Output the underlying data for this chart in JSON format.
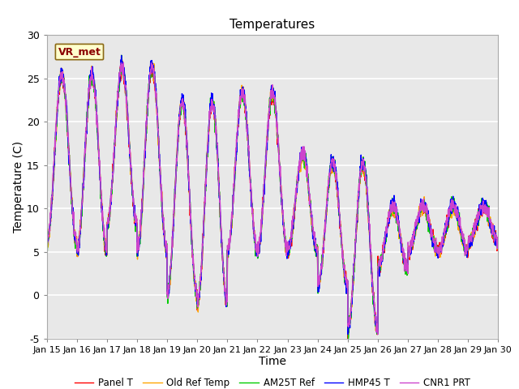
{
  "title": "Temperatures",
  "xlabel": "Time",
  "ylabel": "Temperature (C)",
  "xlim": [
    0,
    15
  ],
  "ylim": [
    -5,
    30
  ],
  "xtick_labels": [
    "Jan 15",
    "Jan 16",
    "Jan 17",
    "Jan 18",
    "Jan 19",
    "Jan 20",
    "Jan 21",
    "Jan 22",
    "Jan 23",
    "Jan 24",
    "Jan 25",
    "Jan 26",
    "Jan 27",
    "Jan 28",
    "Jan 29",
    "Jan 30"
  ],
  "ytick_labels": [
    "-5",
    "0",
    "5",
    "10",
    "15",
    "20",
    "25",
    "30"
  ],
  "ytick_values": [
    -5,
    0,
    5,
    10,
    15,
    20,
    25,
    30
  ],
  "annotation_text": "VR_met",
  "annotation_box_color": "#ffffcc",
  "annotation_text_color": "#8b0000",
  "legend": [
    "Panel T",
    "Old Ref Temp",
    "AM25T Ref",
    "HMP45 T",
    "CNR1 PRT"
  ],
  "line_colors": [
    "#ff0000",
    "#ffa500",
    "#00cc00",
    "#0000ff",
    "#cc44cc"
  ],
  "line_widths": [
    1.0,
    1.0,
    1.0,
    1.0,
    1.0
  ],
  "background_color": "#ffffff",
  "plot_bg_color": "#e8e8e8",
  "grid_color": "#ffffff",
  "title_fontsize": 11,
  "axis_fontsize": 9,
  "tick_fontsize": 8
}
